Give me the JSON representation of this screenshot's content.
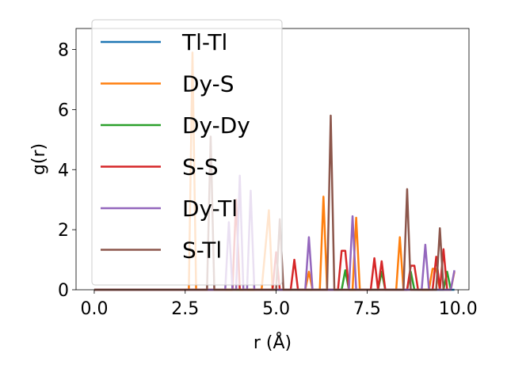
{
  "chart_data": {
    "type": "line",
    "title": "",
    "xlabel": "r (Å)",
    "ylabel": "g(r)",
    "xlim": [
      -0.5,
      10.3
    ],
    "ylim": [
      0,
      8.7
    ],
    "xticks": [
      0.0,
      2.5,
      5.0,
      7.5,
      10.0
    ],
    "xtick_labels": [
      "0.0",
      "2.5",
      "5.0",
      "7.5",
      "10.0"
    ],
    "yticks": [
      0,
      2,
      4,
      6,
      8
    ],
    "ytick_labels": [
      "0",
      "2",
      "4",
      "6",
      "8"
    ],
    "grid": false,
    "legend_position": "upper-left",
    "series": [
      {
        "name": "Tl-Tl",
        "color": "#1f77b4",
        "points": [
          [
            0.0,
            0.0
          ],
          [
            9.9,
            0.0
          ]
        ]
      },
      {
        "name": "Dy-S",
        "color": "#ff7f0e",
        "points": [
          [
            0.0,
            0.0
          ],
          [
            2.6,
            0.0
          ],
          [
            2.7,
            7.9
          ],
          [
            2.8,
            0.0
          ],
          [
            4.6,
            0.0
          ],
          [
            4.8,
            2.65
          ],
          [
            4.9,
            0.0
          ],
          [
            5.8,
            0.0
          ],
          [
            5.9,
            0.6
          ],
          [
            6.0,
            0.0
          ],
          [
            6.2,
            0.0
          ],
          [
            6.3,
            3.1
          ],
          [
            6.4,
            0.0
          ],
          [
            7.1,
            0.0
          ],
          [
            7.2,
            2.4
          ],
          [
            7.3,
            0.0
          ],
          [
            8.3,
            0.0
          ],
          [
            8.4,
            1.75
          ],
          [
            8.5,
            0.0
          ],
          [
            9.2,
            0.0
          ],
          [
            9.3,
            0.7
          ],
          [
            9.4,
            0.7
          ],
          [
            9.5,
            0.0
          ],
          [
            9.8,
            0.0
          ],
          [
            9.9,
            0.6
          ]
        ]
      },
      {
        "name": "Dy-Dy",
        "color": "#2ca02c",
        "points": [
          [
            0.0,
            0.0
          ],
          [
            6.8,
            0.0
          ],
          [
            6.9,
            0.65
          ],
          [
            7.0,
            0.0
          ],
          [
            7.8,
            0.0
          ],
          [
            7.9,
            0.6
          ],
          [
            8.0,
            0.0
          ],
          [
            8.6,
            0.0
          ],
          [
            8.7,
            0.6
          ],
          [
            8.8,
            0.0
          ],
          [
            9.6,
            0.0
          ],
          [
            9.7,
            0.6
          ],
          [
            9.8,
            0.0
          ]
        ]
      },
      {
        "name": "S-S",
        "color": "#d62728",
        "points": [
          [
            0.0,
            0.0
          ],
          [
            3.8,
            0.0
          ],
          [
            3.9,
            3.0
          ],
          [
            4.0,
            0.0
          ],
          [
            4.9,
            0.0
          ],
          [
            5.0,
            1.25
          ],
          [
            5.1,
            0.0
          ],
          [
            5.4,
            0.0
          ],
          [
            5.5,
            1.0
          ],
          [
            5.6,
            0.0
          ],
          [
            6.7,
            0.0
          ],
          [
            6.8,
            1.3
          ],
          [
            6.9,
            1.3
          ],
          [
            7.0,
            0.0
          ],
          [
            7.6,
            0.0
          ],
          [
            7.7,
            1.05
          ],
          [
            7.8,
            0.0
          ],
          [
            7.9,
            0.95
          ],
          [
            8.0,
            0.0
          ],
          [
            8.6,
            0.0
          ],
          [
            8.7,
            0.8
          ],
          [
            8.8,
            0.8
          ],
          [
            8.9,
            0.0
          ],
          [
            9.3,
            0.0
          ],
          [
            9.4,
            1.1
          ],
          [
            9.5,
            0.0
          ],
          [
            9.6,
            1.35
          ],
          [
            9.7,
            0.0
          ]
        ]
      },
      {
        "name": "Dy-Tl",
        "color": "#9467bd",
        "points": [
          [
            0.0,
            0.0
          ],
          [
            3.6,
            0.0
          ],
          [
            3.7,
            2.25
          ],
          [
            3.8,
            0.0
          ],
          [
            3.9,
            0.0
          ],
          [
            4.0,
            3.8
          ],
          [
            4.1,
            0.0
          ],
          [
            4.2,
            0.0
          ],
          [
            4.3,
            3.3
          ],
          [
            4.4,
            0.0
          ],
          [
            5.8,
            0.0
          ],
          [
            5.9,
            1.75
          ],
          [
            6.0,
            0.0
          ],
          [
            7.0,
            0.0
          ],
          [
            7.1,
            2.45
          ],
          [
            7.2,
            0.0
          ],
          [
            9.0,
            0.0
          ],
          [
            9.1,
            1.5
          ],
          [
            9.2,
            0.0
          ],
          [
            9.8,
            0.0
          ],
          [
            9.9,
            0.65
          ]
        ]
      },
      {
        "name": "S-Tl",
        "color": "#8c564b",
        "points": [
          [
            0.0,
            0.0
          ],
          [
            3.1,
            0.0
          ],
          [
            3.2,
            5.1
          ],
          [
            3.3,
            0.0
          ],
          [
            5.0,
            0.0
          ],
          [
            5.1,
            2.35
          ],
          [
            5.2,
            0.0
          ],
          [
            6.4,
            0.0
          ],
          [
            6.5,
            5.8
          ],
          [
            6.6,
            0.0
          ],
          [
            8.5,
            0.0
          ],
          [
            8.6,
            3.35
          ],
          [
            8.7,
            0.0
          ],
          [
            9.4,
            0.0
          ],
          [
            9.5,
            2.05
          ],
          [
            9.6,
            0.0
          ]
        ]
      }
    ]
  }
}
